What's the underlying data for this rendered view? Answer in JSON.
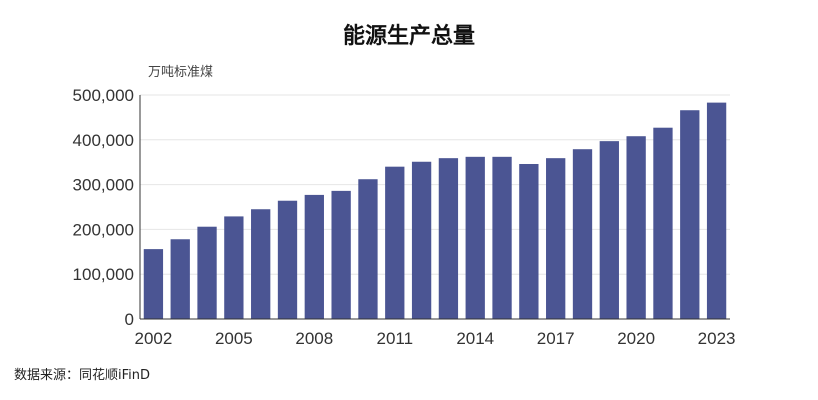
{
  "chart_data": {
    "type": "bar",
    "title": "能源生产总量",
    "ylabel": "万吨标准煤",
    "xlabel": "",
    "source": "数据来源：同花顺iFinD",
    "ylim": [
      0,
      500000
    ],
    "yticks": [
      "0",
      "100,000",
      "200,000",
      "300,000",
      "400,000",
      "500,000"
    ],
    "yticks_values": [
      0,
      100000,
      200000,
      300000,
      400000,
      500000
    ],
    "xtick_labels": [
      "2002",
      "2005",
      "2008",
      "2011",
      "2014",
      "2017",
      "2020",
      "2023"
    ],
    "categories": [
      "2002",
      "2003",
      "2004",
      "2005",
      "2006",
      "2007",
      "2008",
      "2009",
      "2010",
      "2011",
      "2012",
      "2013",
      "2014",
      "2015",
      "2016",
      "2017",
      "2018",
      "2019",
      "2020",
      "2021",
      "2022",
      "2023"
    ],
    "values": [
      156000,
      178000,
      206000,
      229000,
      245000,
      264000,
      277000,
      286000,
      312000,
      340000,
      351000,
      359000,
      362000,
      362000,
      346000,
      359000,
      379000,
      397000,
      408000,
      427000,
      466000,
      483000
    ],
    "bar_color": "#4b5593",
    "grid": true
  }
}
